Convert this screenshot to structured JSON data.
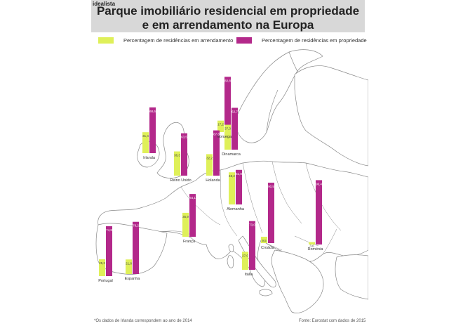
{
  "brand": "idealista",
  "title": [
    "Parque imobiliário residencial em propriedade",
    "e em arrendamento na Europa"
  ],
  "legend": {
    "rent": "Percentagem de residências em arrendamento",
    "own": "Percentagem de residências em propriedade"
  },
  "colors": {
    "rent": "#dff059",
    "own": "#b3288a",
    "map_border": "#888888",
    "background": "#ffffff",
    "header": "#d8d8d8"
  },
  "footnote": "*Os dados de Irlanda correspondem ao ano de 2014",
  "source": "Fonte: Eurostat com dados de 2015",
  "chart_data": {
    "type": "bar",
    "series": [
      {
        "key": "rent",
        "name": "Percentagem de residências em arrendamento"
      },
      {
        "key": "own",
        "name": "Percentagem de residências em propriedade"
      }
    ],
    "countries": [
      {
        "name": "Noruega",
        "rent": 17.2,
        "own": 82.8,
        "rent_label": "17,2",
        "own_label": "82,8"
      },
      {
        "name": "Irlanda",
        "rent": 31.4,
        "own": 68.6,
        "rent_label": "31,4",
        "own_label": "68,6"
      },
      {
        "name": "Reino Unido",
        "rent": 36.3,
        "own": 63.5,
        "rent_label": "36,3",
        "own_label": "63,5"
      },
      {
        "name": "Holanda",
        "rent": 32.2,
        "own": 67.8,
        "rent_label": "32,2",
        "own_label": "67,8"
      },
      {
        "name": "Dinamarca",
        "rent": 37.3,
        "own": 62.7,
        "rent_label": "37,3",
        "own_label": "62,7"
      },
      {
        "name": "Alemanha",
        "rent": 48.2,
        "own": 51.8,
        "rent_label": "48,2",
        "own_label": "51,8"
      },
      {
        "name": "França",
        "rent": 35.9,
        "own": 64.1,
        "rent_label": "35,9",
        "own_label": "64,1"
      },
      {
        "name": "Portugal",
        "rent": 25.2,
        "own": 74.8,
        "rent_label": "25,2",
        "own_label": "74,8"
      },
      {
        "name": "Espanha",
        "rent": 21.8,
        "own": 78.2,
        "rent_label": "21,8",
        "own_label": "78,2"
      },
      {
        "name": "Croácia",
        "rent": 9.5,
        "own": 90.5,
        "rent_label": "9,5",
        "own_label": "90,5"
      },
      {
        "name": "Itália",
        "rent": 27.0,
        "own": 73.0,
        "rent_label": "27,0",
        "own_label": "73,0"
      },
      {
        "name": "Roménia",
        "rent": 3.6,
        "own": 96.4,
        "rent_label": "3,6",
        "own_label": "96,4"
      }
    ]
  }
}
